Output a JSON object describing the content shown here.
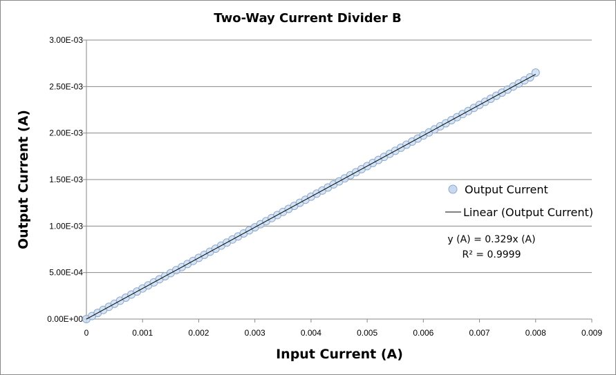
{
  "chart_data": {
    "type": "scatter",
    "title": "Two-Way Current Divider B",
    "xlabel": "Input Current (A)",
    "ylabel": "Output Current (A)",
    "xlim": [
      0,
      0.009
    ],
    "ylim": [
      0,
      0.003
    ],
    "x_ticks": [
      "0",
      "0.001",
      "0.002",
      "0.003",
      "0.004",
      "0.005",
      "0.006",
      "0.007",
      "0.008",
      "0.009"
    ],
    "y_ticks": [
      "0.00E+00",
      "5.00E-04",
      "1.00E-03",
      "1.50E-03",
      "2.00E-03",
      "2.50E-03",
      "3.00E-03"
    ],
    "grid": "horizontal",
    "legend_position": "right",
    "marker_fill": "#c6d9f1",
    "marker_edge": "#8ea9c8",
    "line_color": "#000000",
    "series": [
      {
        "name": "Output Current",
        "kind": "markers",
        "x_start": 0,
        "x_end": 0.008,
        "x_step": 0.0001,
        "slope": 0.329,
        "end_point": [
          0.008,
          0.00265
        ]
      },
      {
        "name": "Linear (Output Current)",
        "kind": "trendline",
        "slope": 0.329,
        "x_range": [
          0,
          0.008
        ]
      }
    ],
    "annotations": {
      "equation": "y (A) = 0.329x (A)",
      "r_squared": "R² = 0.9999"
    }
  }
}
